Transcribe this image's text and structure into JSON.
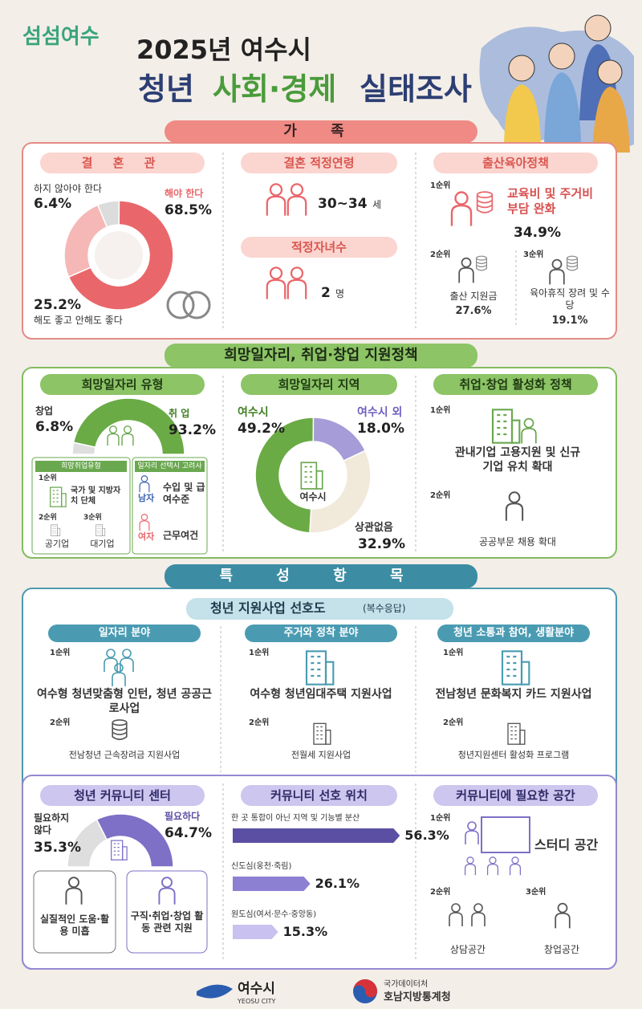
{
  "header": {
    "logo": "섬섬여수",
    "title_line1": "2025년 여수시",
    "title_line2": [
      "청년",
      "사회·경제",
      "실태조사"
    ]
  },
  "family": {
    "section_title": "가 족",
    "marriage_view": {
      "title": "결 혼 관",
      "items": [
        {
          "label": "해야 한다",
          "value": 68.5,
          "value_label": "68.5%",
          "color": "#e9676b"
        },
        {
          "label": "해도 좋고 안해도 좋다",
          "value": 25.2,
          "value_label": "25.2%",
          "color": "#f5b8b6"
        },
        {
          "label": "하지 않아야 한다",
          "value": 6.4,
          "value_label": "6.4%",
          "color": "#dcdcdc"
        }
      ]
    },
    "marriage_age": {
      "title": "결혼 적정연령",
      "value": "30~34",
      "unit": "세"
    },
    "children": {
      "title": "적정자녀수",
      "value": "2",
      "unit": "명"
    },
    "childcare_policy": {
      "title": "출산육아정책",
      "ranks": [
        {
          "rank": "1순위",
          "label": "교육비 및 주거비 부담 완화",
          "value_label": "34.9%"
        },
        {
          "rank": "2순위",
          "label": "출산 지원금",
          "value_label": "27.6%"
        },
        {
          "rank": "3순위",
          "label": "육아휴직 장려 및 수당",
          "value_label": "19.1%"
        }
      ]
    }
  },
  "jobs": {
    "section_title": "희망일자리, 취업·창업 지원정책",
    "job_type": {
      "title": "희망일자리 유형",
      "items": [
        {
          "label": "창업",
          "value": 6.8,
          "value_label": "6.8%",
          "color": "#dedede"
        },
        {
          "label": "취 업",
          "value": 93.2,
          "value_label": "93.2%",
          "color": "#6aab45"
        }
      ],
      "preferred": {
        "title": "희망취업유형",
        "ranks": [
          {
            "rank": "1순위",
            "label": "국가 및 지방자치 단체"
          },
          {
            "rank": "2순위",
            "label": "공기업"
          },
          {
            "rank": "3순위",
            "label": "대기업"
          }
        ]
      },
      "factors": {
        "title": "일자리 선택시 고려사항",
        "items": [
          {
            "group": "남자",
            "label": "수입 및 급여수준"
          },
          {
            "group": "여자",
            "label": "근무여건"
          }
        ]
      }
    },
    "job_region": {
      "title": "희망일자리 지역",
      "center": "여수시",
      "items": [
        {
          "label": "여수시 외",
          "value": 18.0,
          "value_label": "18.0%",
          "color": "#a69cd8"
        },
        {
          "label": "상관없음",
          "value": 32.9,
          "value_label": "32.9%",
          "color": "#f1e9da"
        },
        {
          "label": "여수시",
          "value": 49.2,
          "value_label": "49.2%",
          "color": "#6aab45"
        }
      ]
    },
    "policy": {
      "title": "취업·창업 활성화 정책",
      "ranks": [
        {
          "rank": "1순위",
          "label": "관내기업 고용지원 및 신규기업 유치 확대"
        },
        {
          "rank": "2순위",
          "label": "공공부문 채용 확대"
        }
      ]
    }
  },
  "features": {
    "section_title": "특 성 항 목",
    "support": {
      "title": "청년 지원사업 선호도",
      "note": "(복수응답)",
      "fields": [
        {
          "title": "일자리 분야",
          "ranks": [
            {
              "rank": "1순위",
              "label": "여수형 청년맞춤형 인턴, 청년 공공근로사업"
            },
            {
              "rank": "2순위",
              "label": "전남청년 근속장려금 지원사업"
            }
          ]
        },
        {
          "title": "주거와 정착 분야",
          "ranks": [
            {
              "rank": "1순위",
              "label": "여수형 청년임대주택 지원사업"
            },
            {
              "rank": "2순위",
              "label": "전월세 지원사업"
            }
          ]
        },
        {
          "title": "청년 소통과 참여, 생활분야",
          "ranks": [
            {
              "rank": "1순위",
              "label": "전남청년 문화복지 카드 지원사업"
            },
            {
              "rank": "2순위",
              "label": "청년지원센터 활성화 프로그램"
            }
          ]
        }
      ]
    },
    "community_center": {
      "title": "청년 커뮤니티 센터",
      "items": [
        {
          "label": "필요하지 않다",
          "value": 35.3,
          "value_label": "35.3%",
          "color": "#dedede"
        },
        {
          "label": "필요하다",
          "value": 64.7,
          "value_label": "64.7%",
          "color": "#7d70c6"
        }
      ],
      "reasons": [
        "실질적인 도움·활용 미흡",
        "구직·취업·창업 활동 관련 지원"
      ]
    },
    "community_location": {
      "title": "커뮤니티 선호 위치",
      "items": [
        {
          "label": "한 곳 통합이 아닌 지역 및 기능별 분산",
          "value": 56.3,
          "value_label": "56.3%",
          "color": "#5b4fa3"
        },
        {
          "label": "신도심(웅천·죽림)",
          "value": 26.1,
          "value_label": "26.1%",
          "color": "#8b80d2"
        },
        {
          "label": "원도심(여서·문수·중앙동)",
          "value": 15.3,
          "value_label": "15.3%",
          "color": "#c9c1ef"
        }
      ]
    },
    "community_space": {
      "title": "커뮤니티에 필요한 공간",
      "ranks": [
        {
          "rank": "1순위",
          "label": "스터디 공간"
        },
        {
          "rank": "2순위",
          "label": "상담공간"
        },
        {
          "rank": "3순위",
          "label": "창업공간"
        }
      ]
    }
  },
  "footer": {
    "city": "여수시",
    "city_en": "YEOSU CITY",
    "agency": "국가데이터처",
    "office": "호남지방통계청"
  }
}
